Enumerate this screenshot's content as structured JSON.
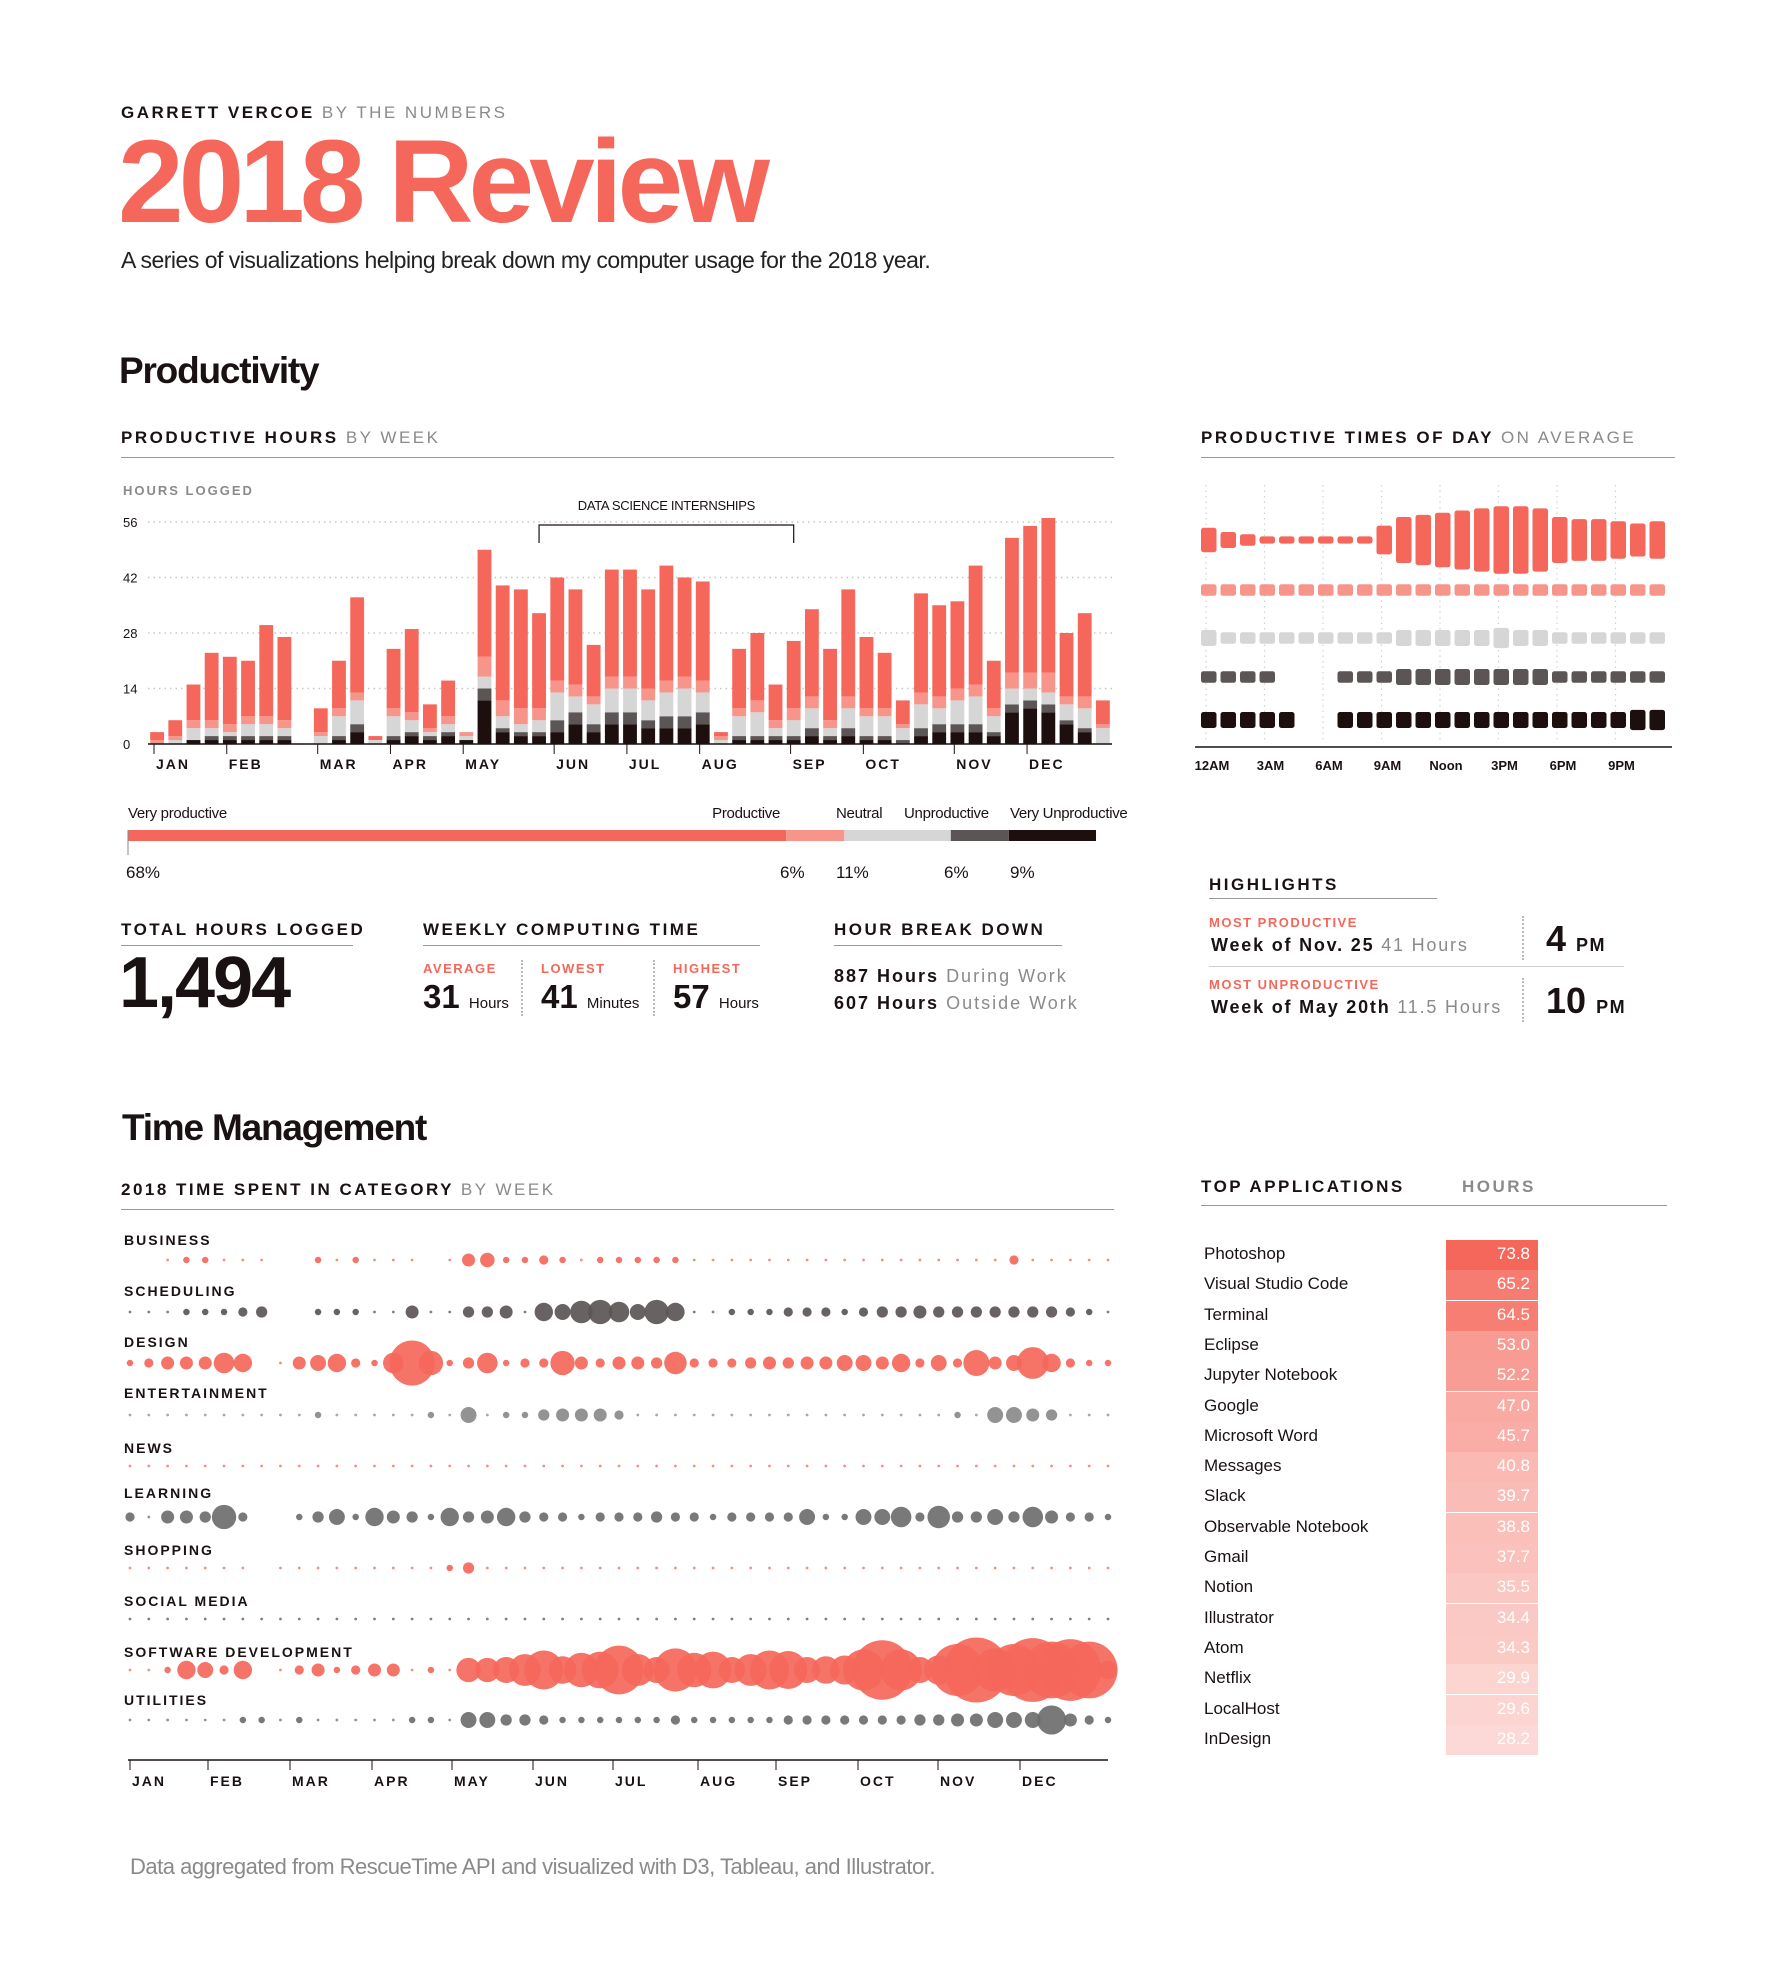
{
  "header": {
    "name": "GARRETT VERCOE",
    "tagline": "BY THE NUMBERS",
    "title": "2018 Review",
    "subtitle": "A series of visualizations helping break down my computer usage for the 2018 year."
  },
  "productivity": {
    "section_title": "Productivity",
    "weekly_title_bold": "PRODUCTIVE HOURS",
    "weekly_title_light": "BY WEEK",
    "times_title_bold": "PRODUCTIVE TIMES OF DAY",
    "times_title_light": "ON AVERAGE"
  },
  "distribution": {
    "labels": [
      "Very productive",
      "Productive",
      "Neutral",
      "Unproductive",
      "Very Unproductive"
    ],
    "percents": [
      "68%",
      "6%",
      "11%",
      "6%",
      "9%"
    ],
    "values": [
      68,
      6,
      11,
      6,
      9
    ]
  },
  "stats": {
    "total_label": "TOTAL HOURS LOGGED",
    "total_value": "1,494",
    "weekly_label": "WEEKLY COMPUTING TIME",
    "average_label": "AVERAGE",
    "average_value": "31",
    "average_unit": "Hours",
    "lowest_label": "LOWEST",
    "lowest_value": "41",
    "lowest_unit": "Minutes",
    "highest_label": "HIGHEST",
    "highest_value": "57",
    "highest_unit": "Hours",
    "breakdown_label": "HOUR BREAK DOWN",
    "work_hours": "887 Hours",
    "work_text": "During Work",
    "outside_hours": "607 Hours",
    "outside_text": "Outside Work"
  },
  "highlights": {
    "title": "HIGHLIGHTS",
    "most_label": "MOST PRODUCTIVE",
    "most_week": "Week of Nov. 25",
    "most_hours": "41 Hours",
    "most_time": "4",
    "most_ampm": "PM",
    "least_label": "MOST UNPRODUCTIVE",
    "least_week": "Week of May 20th",
    "least_hours": "11.5 Hours",
    "least_time": "10",
    "least_ampm": "PM"
  },
  "time_management": {
    "section_title": "Time Management",
    "category_title_bold": "2018 TIME SPENT IN CATEGORY",
    "category_title_light": "BY WEEK",
    "apps_title": "TOP APPLICATIONS",
    "apps_hours_label": "HOURS"
  },
  "top_apps": [
    {
      "name": "Photoshop",
      "hours": "73.8"
    },
    {
      "name": "Visual Studio Code",
      "hours": "65.2"
    },
    {
      "name": "Terminal",
      "hours": "64.5"
    },
    {
      "name": "Eclipse",
      "hours": "53.0"
    },
    {
      "name": "Jupyter Notebook",
      "hours": "52.2"
    },
    {
      "name": "Google",
      "hours": "47.0"
    },
    {
      "name": "Microsoft Word",
      "hours": "45.7"
    },
    {
      "name": "Messages",
      "hours": "40.8"
    },
    {
      "name": "Slack",
      "hours": "39.7"
    },
    {
      "name": "Observable Notebook",
      "hours": "38.8"
    },
    {
      "name": "Gmail",
      "hours": "37.7"
    },
    {
      "name": "Notion",
      "hours": "35.5"
    },
    {
      "name": "Illustrator",
      "hours": "34.4"
    },
    {
      "name": "Atom",
      "hours": "34.3"
    },
    {
      "name": "Netflix",
      "hours": "29.9"
    },
    {
      "name": "LocalHost",
      "hours": "29.6"
    },
    {
      "name": "InDesign",
      "hours": "28.2"
    }
  ],
  "footer": "Data aggregated from RescueTime API and visualized with D3, Tableau, and Illustrator.",
  "colors": {
    "very_productive": "#f4675a",
    "productive": "#f8958b",
    "neutral": "#d6d6d6",
    "unproductive": "#5c5555",
    "very_unproductive": "#1e0f0f",
    "learning_grey": "#6e6e6e"
  },
  "chart_data": [
    {
      "type": "bar",
      "stacked": true,
      "ylabel": "HOURS LOGGED",
      "yticks": [
        0,
        14,
        28,
        42,
        56
      ],
      "ylim": [
        0,
        57
      ],
      "annotation": "DATA SCIENCE INTERNSHIPS",
      "annotation_range": [
        22,
        36
      ],
      "month_labels": [
        "JAN",
        "FEB",
        "MAR",
        "APR",
        "MAY",
        "JUN",
        "JUL",
        "AUG",
        "SEP",
        "OCT",
        "NOV",
        "DEC"
      ],
      "month_start_week": [
        1,
        5,
        10,
        14,
        18,
        23,
        27,
        31,
        36,
        40,
        45,
        49
      ],
      "series": [
        {
          "name": "Very productive",
          "values": [
            2,
            4,
            9,
            17,
            17,
            14,
            23,
            21,
            0,
            6,
            12,
            24,
            1,
            15,
            21,
            6,
            9,
            0,
            27,
            29,
            30,
            24,
            26,
            24,
            13,
            27,
            27,
            25,
            29,
            25,
            25,
            1,
            15,
            17,
            9,
            17,
            22,
            18,
            27,
            18,
            14,
            6,
            25,
            23,
            22,
            30,
            12,
            34,
            37,
            39,
            16,
            21,
            6
          ]
        },
        {
          "name": "Productive",
          "values": [
            1,
            1,
            2,
            2,
            2,
            2,
            2,
            2,
            0,
            1,
            2,
            2,
            0,
            2,
            2,
            1,
            2,
            1,
            5,
            4,
            4,
            3,
            3,
            3,
            2,
            3,
            3,
            3,
            3,
            3,
            3,
            1,
            2,
            3,
            2,
            3,
            3,
            2,
            3,
            2,
            2,
            1,
            3,
            3,
            3,
            3,
            2,
            4,
            4,
            5,
            2,
            3,
            1
          ]
        },
        {
          "name": "Neutral",
          "values": [
            0,
            1,
            3,
            2,
            1,
            3,
            3,
            2,
            0,
            2,
            5,
            6,
            1,
            5,
            3,
            1,
            2,
            1,
            3,
            3,
            2,
            3,
            7,
            4,
            5,
            6,
            6,
            5,
            6,
            7,
            5,
            1,
            5,
            6,
            2,
            4,
            5,
            2,
            5,
            5,
            5,
            3,
            6,
            4,
            6,
            7,
            4,
            4,
            3,
            3,
            4,
            5,
            4
          ]
        },
        {
          "name": "Unproductive",
          "values": [
            0,
            0,
            0,
            1,
            1,
            1,
            1,
            1,
            0,
            0,
            1,
            2,
            0,
            1,
            1,
            1,
            1,
            0,
            3,
            1,
            1,
            1,
            3,
            3,
            2,
            3,
            3,
            2,
            3,
            3,
            3,
            0,
            1,
            1,
            1,
            1,
            2,
            1,
            2,
            1,
            1,
            1,
            2,
            2,
            2,
            2,
            1,
            2,
            2,
            2,
            1,
            1,
            0
          ]
        },
        {
          "name": "Very Unproductive",
          "values": [
            0,
            0,
            1,
            1,
            1,
            1,
            1,
            1,
            0,
            0,
            1,
            3,
            0,
            1,
            2,
            1,
            2,
            1,
            11,
            3,
            2,
            2,
            3,
            5,
            3,
            5,
            5,
            4,
            4,
            4,
            5,
            0,
            1,
            1,
            1,
            1,
            2,
            1,
            2,
            1,
            1,
            0,
            2,
            3,
            3,
            3,
            2,
            8,
            9,
            8,
            5,
            3,
            0
          ]
        }
      ]
    },
    {
      "type": "heatmap",
      "subtype": "productivity-by-hour",
      "x_labels": [
        "12AM",
        "3AM",
        "6AM",
        "9AM",
        "Noon",
        "3PM",
        "6PM",
        "9PM"
      ],
      "rows": [
        "Very productive",
        "Productive",
        "Neutral",
        "Unproductive",
        "Very Unproductive"
      ],
      "values": [
        [
          5,
          3,
          2,
          1,
          1,
          1,
          1,
          1,
          1,
          6,
          10,
          11,
          12,
          13,
          14,
          15,
          15,
          14,
          10,
          9,
          9,
          8,
          7,
          8
        ],
        [
          2,
          2,
          2,
          2,
          2,
          2,
          2,
          2,
          2,
          2,
          2,
          2,
          2,
          2,
          2,
          2,
          2,
          2,
          2,
          2,
          2,
          2,
          2,
          2
        ],
        [
          3,
          2,
          2,
          2,
          2,
          2,
          2,
          2,
          2,
          2,
          3,
          3,
          3,
          3,
          3,
          4,
          3,
          3,
          2,
          2,
          2,
          2,
          2,
          2
        ],
        [
          2,
          2,
          2,
          2,
          0,
          0,
          0,
          2,
          2,
          2,
          3,
          3,
          3,
          3,
          3,
          3,
          3,
          3,
          2,
          2,
          2,
          2,
          2,
          2
        ],
        [
          3,
          3,
          3,
          3,
          3,
          0,
          0,
          3,
          3,
          3,
          3,
          3,
          3,
          3,
          3,
          3,
          3,
          3,
          3,
          3,
          3,
          3,
          4,
          4
        ]
      ]
    },
    {
      "type": "scatter",
      "subtype": "bubble-by-week",
      "month_labels": [
        "JAN",
        "FEB",
        "MAR",
        "APR",
        "MAY",
        "JUN",
        "JUL",
        "AUG",
        "SEP",
        "OCT",
        "NOV",
        "DEC"
      ],
      "categories": [
        "BUSINESS",
        "SCHEDULING",
        "DESIGN",
        "ENTERTAINMENT",
        "NEWS",
        "LEARNING",
        "SHOPPING",
        "SOCIAL MEDIA",
        "SOFTWARE DEVELOPMENT",
        "UTILITIES"
      ],
      "values": [
        [
          0,
          0,
          0.3,
          0.5,
          0.5,
          0.2,
          0.2,
          0.2,
          0,
          0,
          0.5,
          0.2,
          0.5,
          0.3,
          0.3,
          0.2,
          0,
          0.2,
          2,
          2.5,
          0.5,
          0.5,
          1,
          0.5,
          0.2,
          0.5,
          0.5,
          0.5,
          0.5,
          0.5,
          0.2,
          0.2,
          0.2,
          0.2,
          0.2,
          0.2,
          0.2,
          0.2,
          0.2,
          0.2,
          0.2,
          0.2,
          0.2,
          0.2,
          0.2,
          0.2,
          0.2,
          1,
          0.2,
          0.2,
          0.2,
          0.2,
          0.2
        ],
        [
          0.2,
          0.2,
          0.2,
          0.5,
          0.5,
          0.5,
          1,
          1.5,
          0,
          0,
          0.5,
          0.5,
          0.5,
          0.2,
          0.2,
          2,
          0.2,
          0.2,
          1.5,
          1.5,
          2,
          0.2,
          4,
          3,
          6,
          7,
          5,
          3,
          7,
          4,
          0.2,
          0.2,
          0.5,
          0.5,
          0.5,
          1,
          1,
          1,
          0.5,
          1,
          1.5,
          1.5,
          2,
          1.5,
          1.5,
          1.5,
          1.5,
          1.5,
          1.5,
          1.5,
          1,
          0.5,
          0.2
        ],
        [
          0.5,
          1,
          2,
          2,
          2,
          5,
          4,
          0,
          0.2,
          2,
          3,
          4,
          1,
          0.5,
          5,
          24,
          7,
          0.5,
          1.5,
          5,
          0.5,
          1,
          1,
          7,
          2,
          1,
          2,
          2,
          1.5,
          6,
          1,
          1,
          1,
          1.5,
          2,
          1.5,
          2,
          2,
          3,
          3,
          2,
          4,
          1,
          3,
          1,
          8,
          2,
          3,
          12,
          4,
          1,
          0.5,
          0.5
        ],
        [
          0.2,
          0.2,
          0.2,
          0.2,
          0.2,
          0.2,
          0.2,
          0.2,
          0.2,
          0.2,
          0.5,
          0.2,
          0.2,
          0.2,
          0.2,
          0.2,
          0.5,
          0.2,
          3,
          0.2,
          0.5,
          0.5,
          1.5,
          2,
          2,
          2,
          1,
          0.2,
          0.2,
          0.2,
          0.2,
          0.2,
          0.2,
          0.2,
          0.2,
          0.2,
          0.2,
          0.2,
          0.2,
          0.2,
          0.2,
          0.2,
          0.2,
          0.2,
          0.5,
          0.2,
          3,
          3,
          2,
          1.5,
          0.2,
          0.2,
          0.2
        ],
        [
          0.2,
          0.2,
          0.2,
          0.2,
          0.2,
          0.2,
          0.2,
          0.2,
          0.2,
          0.2,
          0.2,
          0.2,
          0.3,
          0.2,
          0.2,
          0.2,
          0.2,
          0.2,
          0.2,
          0.2,
          0.2,
          0.2,
          0.2,
          0.2,
          0.2,
          0.2,
          0.2,
          0.2,
          0.2,
          0.2,
          0.2,
          0.2,
          0.2,
          0.2,
          0.2,
          0.2,
          0.2,
          0.2,
          0.2,
          0.2,
          0.2,
          0.2,
          0.2,
          0.2,
          0.2,
          0.2,
          0.2,
          0.2,
          0.2,
          0.2,
          0.2,
          0.2,
          0.2
        ],
        [
          1,
          0.2,
          2,
          2,
          1.5,
          7,
          1,
          0,
          0,
          0.5,
          1.5,
          3,
          0.5,
          4,
          2,
          1.5,
          0.5,
          4,
          1.5,
          2,
          4,
          1.5,
          1,
          1,
          0.5,
          1,
          1,
          1,
          1.5,
          1,
          1,
          0.5,
          1,
          1,
          1,
          1,
          3,
          0.5,
          0.5,
          3,
          3,
          5,
          1,
          6,
          1.5,
          1.5,
          3,
          1.5,
          5,
          2,
          1,
          1,
          0.5
        ],
        [
          0.2,
          0.2,
          0.2,
          0.2,
          0.2,
          0.2,
          0.2,
          0,
          0.2,
          0.2,
          0.2,
          0.2,
          0.2,
          0.2,
          0.2,
          0.2,
          0.2,
          0.5,
          1.5,
          0.2,
          0.2,
          0.2,
          0.2,
          0.2,
          0.2,
          0.2,
          0.2,
          0.2,
          0.3,
          0.2,
          0.2,
          0.2,
          0.2,
          0.2,
          0.2,
          0.2,
          0.2,
          0.2,
          0.2,
          0.2,
          0.2,
          0.2,
          0.2,
          0.2,
          0.2,
          0.2,
          0.2,
          0.2,
          0.2,
          0.2,
          0.2,
          0.3,
          0.2
        ],
        [
          0.2,
          0.2,
          0.2,
          0.2,
          0.2,
          0.2,
          0.2,
          0.2,
          0.2,
          0.2,
          0.2,
          0.2,
          0.2,
          0.2,
          0.2,
          0.2,
          0.2,
          0.2,
          0.2,
          0.2,
          0.2,
          0.2,
          0.2,
          0.2,
          0.2,
          0.2,
          0.2,
          0.2,
          0.2,
          0.2,
          0.2,
          0.2,
          0.2,
          0.2,
          0.2,
          0.2,
          0.2,
          0.2,
          0.2,
          0.2,
          0.2,
          0.2,
          0.2,
          0.2,
          0.2,
          0.2,
          0.2,
          0.2,
          0.2,
          0.2,
          0.2,
          0.2,
          0.2
        ],
        [
          0.2,
          0.2,
          0.5,
          4,
          3,
          1,
          4,
          0,
          0.2,
          1,
          2,
          0.5,
          1,
          2,
          2,
          0.2,
          0.5,
          0.2,
          7,
          7,
          8,
          12,
          18,
          9,
          14,
          16,
          28,
          12,
          8,
          22,
          14,
          16,
          8,
          12,
          18,
          17,
          8,
          9,
          10,
          20,
          42,
          20,
          8,
          10,
          32,
          50,
          22,
          32,
          48,
          38,
          45,
          38,
          4
        ],
        [
          0.2,
          0.2,
          0.2,
          0.2,
          0.2,
          0.2,
          0.5,
          0.5,
          0.2,
          0.5,
          0.2,
          0.2,
          0.2,
          0.2,
          0.2,
          0.5,
          0.5,
          0.2,
          3,
          3,
          1.5,
          1.5,
          1,
          0.5,
          0.5,
          0.5,
          0.5,
          0.5,
          0.5,
          1,
          0.5,
          0.5,
          0.5,
          0.5,
          0.5,
          1,
          1,
          1,
          1,
          1,
          1,
          1,
          1.5,
          1.5,
          2,
          2,
          3,
          3,
          3,
          10,
          2,
          1,
          0.5
        ]
      ],
      "colors": [
        "#f4675a",
        "#5c5555",
        "#f4675a",
        "#8a8a8a",
        "#f4675a",
        "#6e6e6e",
        "#f4675a",
        "#5c5555",
        "#f4675a",
        "#6e6e6e"
      ]
    }
  ]
}
